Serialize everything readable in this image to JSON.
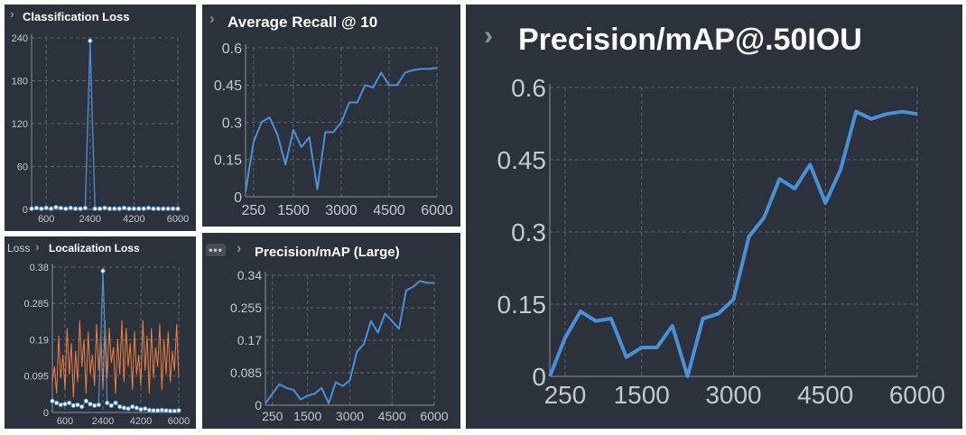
{
  "chart_data": [
    {
      "id": "cls",
      "type": "line",
      "title": "Classification Loss",
      "ylim": [
        0,
        240
      ],
      "xlim": [
        0,
        6000
      ],
      "yticks": [
        "0",
        "60",
        "120",
        "180",
        "240"
      ],
      "xticks": [
        "600",
        "2400",
        "4200",
        "6000"
      ],
      "grid": true,
      "series": [
        {
          "color": "#4a90d9",
          "markers": true,
          "x": [
            0,
            200,
            400,
            600,
            800,
            1000,
            1200,
            1400,
            1600,
            1800,
            2000,
            2200,
            2400,
            2600,
            2800,
            3000,
            3200,
            3400,
            3600,
            3800,
            4000,
            4200,
            4400,
            4600,
            4800,
            5000,
            5200,
            5400,
            5600,
            5800,
            6000
          ],
          "y": [
            1,
            2,
            1,
            2,
            1,
            3,
            2,
            1,
            2,
            1,
            1,
            2,
            236,
            1,
            1,
            2,
            1,
            1,
            1,
            2,
            1,
            1,
            1,
            1,
            2,
            1,
            1,
            1,
            1,
            1,
            1
          ]
        }
      ]
    },
    {
      "id": "recall",
      "type": "line",
      "title": "Average Recall @ 10",
      "ylim": [
        0,
        0.6
      ],
      "xlim": [
        0,
        6000
      ],
      "yticks": [
        "0",
        "0.15",
        "0.3",
        "0.45",
        "0.6"
      ],
      "xticks": [
        "250",
        "1500",
        "3000",
        "4500",
        "6000"
      ],
      "grid": true,
      "series": [
        {
          "color": "#4a90d9",
          "x": [
            0,
            250,
            500,
            750,
            1000,
            1250,
            1500,
            1750,
            2000,
            2250,
            2500,
            2750,
            3000,
            3250,
            3500,
            3750,
            4000,
            4250,
            4500,
            4750,
            5000,
            5250,
            5500,
            5750,
            6000
          ],
          "y": [
            0.02,
            0.22,
            0.3,
            0.32,
            0.25,
            0.13,
            0.27,
            0.2,
            0.24,
            0.03,
            0.26,
            0.26,
            0.3,
            0.38,
            0.38,
            0.45,
            0.44,
            0.5,
            0.45,
            0.45,
            0.5,
            0.51,
            0.515,
            0.515,
            0.52
          ]
        }
      ]
    },
    {
      "id": "loc",
      "type": "line",
      "title": "Localization Loss",
      "ylim": [
        0,
        0.38
      ],
      "xlim": [
        0,
        6000
      ],
      "yticks": [
        "0",
        "0.095",
        "0.19",
        "0.285",
        "0.38"
      ],
      "xticks": [
        "600",
        "2400",
        "4200",
        "6000"
      ],
      "grid": true,
      "series": [
        {
          "color": "#f08040",
          "name": "",
          "x": [
            0,
            100,
            200,
            300,
            400,
            500,
            600,
            700,
            800,
            900,
            1000,
            1100,
            1200,
            1300,
            1400,
            1500,
            1600,
            1700,
            1800,
            1900,
            2000,
            2100,
            2200,
            2300,
            2400,
            2500,
            2600,
            2700,
            2800,
            2900,
            3000,
            3100,
            3200,
            3300,
            3400,
            3500,
            3600,
            3700,
            3800,
            3900,
            4000,
            4100,
            4200,
            4300,
            4400,
            4500,
            4600,
            4700,
            4800,
            4900,
            5000,
            5100,
            5200,
            5300,
            5400,
            5500,
            5600,
            5700,
            5800,
            5900,
            6000
          ],
          "y": [
            0.08,
            0.12,
            0.05,
            0.2,
            0.09,
            0.15,
            0.06,
            0.22,
            0.1,
            0.18,
            0.04,
            0.16,
            0.08,
            0.24,
            0.12,
            0.19,
            0.05,
            0.21,
            0.1,
            0.15,
            0.07,
            0.23,
            0.11,
            0.2,
            0.06,
            0.24,
            0.09,
            0.22,
            0.13,
            0.17,
            0.05,
            0.19,
            0.1,
            0.24,
            0.08,
            0.22,
            0.12,
            0.18,
            0.06,
            0.21,
            0.1,
            0.15,
            0.07,
            0.24,
            0.11,
            0.2,
            0.05,
            0.22,
            0.09,
            0.17,
            0.12,
            0.23,
            0.06,
            0.19,
            0.1,
            0.21,
            0.08,
            0.16,
            0.11,
            0.23,
            0.09
          ]
        },
        {
          "color": "#4a90d9",
          "markers": true,
          "x": [
            0,
            200,
            400,
            600,
            800,
            1000,
            1200,
            1400,
            1600,
            1800,
            2000,
            2200,
            2400,
            2600,
            2800,
            3000,
            3200,
            3400,
            3600,
            3800,
            4000,
            4200,
            4400,
            4600,
            4800,
            5000,
            5200,
            5400,
            5600,
            5800,
            6000
          ],
          "y": [
            0.03,
            0.025,
            0.02,
            0.022,
            0.025,
            0.018,
            0.02,
            0.015,
            0.03,
            0.022,
            0.018,
            0.02,
            0.37,
            0.025,
            0.018,
            0.025,
            0.015,
            0.012,
            0.01,
            0.015,
            0.012,
            0.008,
            0.01,
            0.006,
            0.005,
            0.005,
            0.006,
            0.005,
            0.004,
            0.004,
            0.005
          ]
        }
      ]
    },
    {
      "id": "large",
      "type": "line",
      "title": "Precision/mAP (Large)",
      "ylim": [
        0,
        0.34
      ],
      "xlim": [
        0,
        6000
      ],
      "yticks": [
        "0",
        "0.085",
        "0.17",
        "0.255",
        "0.34"
      ],
      "xticks": [
        "250",
        "1500",
        "3000",
        "4500",
        "6000"
      ],
      "grid": true,
      "series": [
        {
          "color": "#4a90d9",
          "x": [
            0,
            250,
            500,
            750,
            1000,
            1250,
            1500,
            1750,
            2000,
            2250,
            2500,
            2750,
            3000,
            3250,
            3500,
            3750,
            4000,
            4250,
            4500,
            4750,
            5000,
            5250,
            5500,
            5750,
            6000
          ],
          "y": [
            0.005,
            0.03,
            0.055,
            0.045,
            0.04,
            0.015,
            0.025,
            0.03,
            0.045,
            0.005,
            0.06,
            0.05,
            0.065,
            0.14,
            0.16,
            0.22,
            0.19,
            0.24,
            0.22,
            0.2,
            0.3,
            0.31,
            0.325,
            0.32,
            0.32
          ]
        }
      ]
    },
    {
      "id": "map50",
      "type": "line",
      "title": "Precision/mAP@.50IOU",
      "ylim": [
        0,
        0.6
      ],
      "xlim": [
        0,
        6000
      ],
      "yticks": [
        "0",
        "0.15",
        "0.3",
        "0.45",
        "0.6"
      ],
      "xticks": [
        "250",
        "1500",
        "3000",
        "4500",
        "6000"
      ],
      "grid": true,
      "series": [
        {
          "color": "#4a90d9",
          "x": [
            0,
            250,
            500,
            750,
            1000,
            1250,
            1500,
            1750,
            2000,
            2250,
            2500,
            2750,
            3000,
            3250,
            3500,
            3750,
            4000,
            4250,
            4500,
            4750,
            5000,
            5250,
            5500,
            5750,
            6000
          ],
          "y": [
            0.0,
            0.08,
            0.135,
            0.115,
            0.12,
            0.04,
            0.06,
            0.06,
            0.105,
            0.0,
            0.12,
            0.13,
            0.16,
            0.29,
            0.33,
            0.41,
            0.39,
            0.44,
            0.36,
            0.43,
            0.55,
            0.535,
            0.545,
            0.55,
            0.545
          ]
        }
      ]
    }
  ],
  "breadcrumbs": {
    "loc_prefix": "Loss",
    "chevron": "›",
    "dots": "•••"
  }
}
